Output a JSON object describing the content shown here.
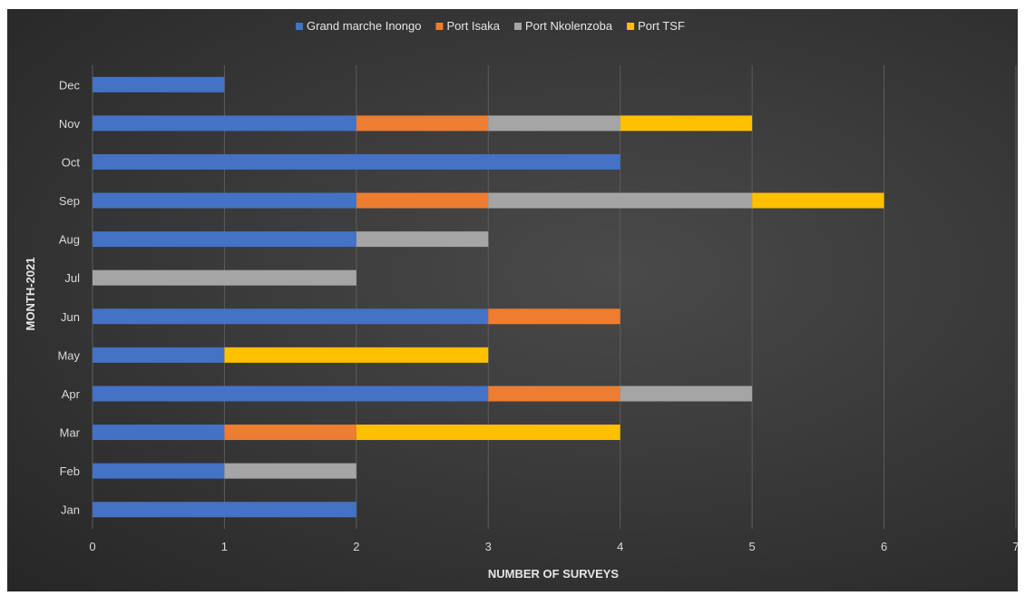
{
  "chart_data": {
    "type": "bar",
    "orientation": "horizontal",
    "stacked": true,
    "categories": [
      "Jan",
      "Feb",
      "Mar",
      "Apr",
      "May",
      "Jun",
      "Jul",
      "Aug",
      "Sep",
      "Oct",
      "Nov",
      "Dec"
    ],
    "series": [
      {
        "name": "Grand marche Inongo",
        "color": "#4472c4",
        "values": [
          2,
          1,
          1,
          3,
          1,
          3,
          0,
          2,
          2,
          4,
          2,
          1
        ]
      },
      {
        "name": "Port Isaka",
        "color": "#ed7d31",
        "values": [
          0,
          0,
          1,
          1,
          0,
          1,
          0,
          0,
          1,
          0,
          1,
          0
        ]
      },
      {
        "name": "Port Nkolenzoba",
        "color": "#a5a5a5",
        "values": [
          0,
          1,
          0,
          1,
          0,
          0,
          2,
          1,
          2,
          0,
          1,
          0
        ]
      },
      {
        "name": "Port TSF",
        "color": "#ffc000",
        "values": [
          0,
          0,
          2,
          0,
          2,
          0,
          0,
          0,
          1,
          0,
          1,
          0
        ]
      }
    ],
    "xlabel": "NUMBER OF SURVEYS",
    "ylabel": "MONTH-2021",
    "xlim": [
      0,
      7
    ],
    "xticks": [
      "0",
      "1",
      "2",
      "3",
      "4",
      "5",
      "6",
      "7"
    ],
    "grid": true,
    "legend": "top-center"
  }
}
